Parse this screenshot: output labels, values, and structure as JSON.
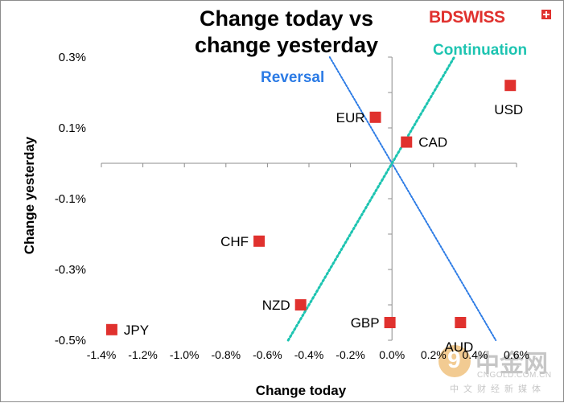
{
  "title": "Change today vs change yesterday",
  "title_lines": [
    "Change today vs",
    "change yesterday"
  ],
  "brand": {
    "bd": "BD",
    "swiss": "SWISS",
    "color": "#e0312e"
  },
  "watermark": {
    "name": "中金网",
    "url": "CNGOLD.COM.CN",
    "subtitle": "中文财经新媒体"
  },
  "colors": {
    "marker": "#e0312e",
    "reversal": "#2c7be5",
    "continuation": "#1dc4b1"
  },
  "chart_data": {
    "type": "scatter",
    "xlabel": "Change today",
    "ylabel": "Change yesterday",
    "xlim": [
      -1.4,
      0.6
    ],
    "ylim": [
      -0.5,
      0.3
    ],
    "x_ticks": [
      {
        "v": -1.4,
        "label": "-1.4%"
      },
      {
        "v": -1.2,
        "label": "-1.2%"
      },
      {
        "v": -1.0,
        "label": "-1.0%"
      },
      {
        "v": -0.8,
        "label": "-0.8%"
      },
      {
        "v": -0.6,
        "label": "-0.6%"
      },
      {
        "v": -0.4,
        "label": "-0.4%"
      },
      {
        "v": -0.2,
        "label": "-0.2%"
      },
      {
        "v": 0.0,
        "label": "0.0%"
      },
      {
        "v": 0.2,
        "label": "0.2%"
      },
      {
        "v": 0.4,
        "label": "0.4%"
      },
      {
        "v": 0.6,
        "label": "0.6%"
      }
    ],
    "y_ticks": [
      {
        "v": 0.3,
        "label": "0.3%"
      },
      {
        "v": 0.1,
        "label": "0.1%"
      },
      {
        "v": -0.1,
        "label": "-0.1%"
      },
      {
        "v": -0.3,
        "label": "-0.3%"
      },
      {
        "v": -0.5,
        "label": "-0.5%"
      }
    ],
    "points": [
      {
        "label": "USD",
        "x": 0.57,
        "y": 0.22,
        "label_pos": "below"
      },
      {
        "label": "EUR",
        "x": -0.08,
        "y": 0.13,
        "label_pos": "left"
      },
      {
        "label": "CAD",
        "x": 0.07,
        "y": 0.06,
        "label_pos": "right"
      },
      {
        "label": "CHF",
        "x": -0.64,
        "y": -0.22,
        "label_pos": "left"
      },
      {
        "label": "NZD",
        "x": -0.44,
        "y": -0.4,
        "label_pos": "left"
      },
      {
        "label": "GBP",
        "x": -0.01,
        "y": -0.45,
        "label_pos": "left"
      },
      {
        "label": "AUD",
        "x": 0.33,
        "y": -0.45,
        "label_pos": "below"
      },
      {
        "label": "JPY",
        "x": -1.35,
        "y": -0.47,
        "label_pos": "right"
      }
    ],
    "lines": [
      {
        "name": "Reversal",
        "from": [
          -0.3,
          0.3
        ],
        "to": [
          0.5,
          -0.5
        ]
      },
      {
        "name": "Continuation",
        "from": [
          -0.5,
          -0.5
        ],
        "to": [
          0.3,
          0.3
        ]
      }
    ],
    "grid": false,
    "legend": "none"
  }
}
